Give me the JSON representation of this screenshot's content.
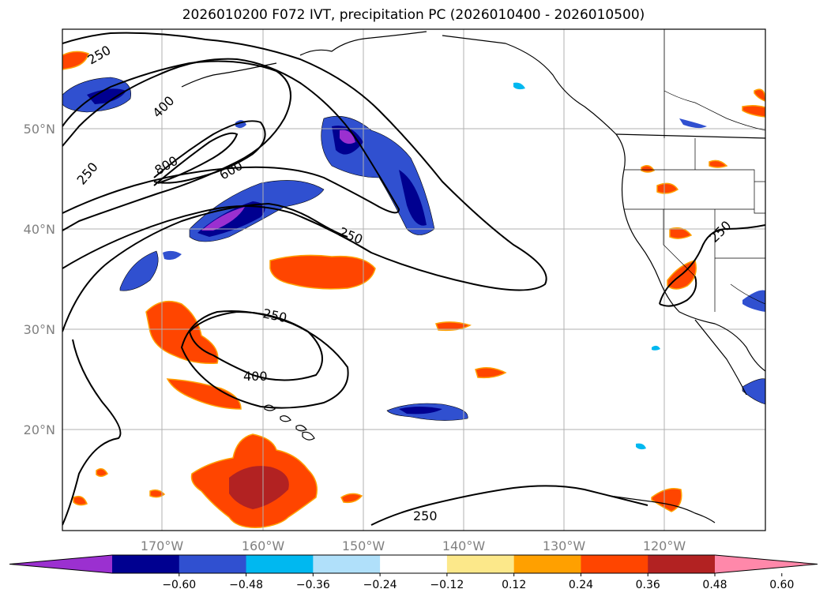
{
  "title": "2026010200 F072 IVT, precipitation PC (2026010400 - 2026010500)",
  "map": {
    "lat_labels": [
      "50°N",
      "40°N",
      "30°N",
      "20°N"
    ],
    "lon_labels": [
      "170°W",
      "160°W",
      "150°W",
      "140°W",
      "130°W",
      "120°W"
    ],
    "contour_labels": [
      "250",
      "400",
      "800",
      "600",
      "250",
      "250",
      "250",
      "400",
      "250",
      "250"
    ]
  },
  "colorbar": {
    "ticks": [
      "−0.60",
      "−0.48",
      "−0.36",
      "−0.24",
      "−0.12",
      "0.12",
      "0.24",
      "0.36",
      "0.48",
      "0.60"
    ],
    "colors": [
      "#9b30d0",
      "#000090",
      "#3050d0",
      "#00b8f0",
      "#b0e0fa",
      "#ffffff",
      "#fce88a",
      "#ffa000",
      "#ff4500",
      "#b22222",
      "#ff88aa"
    ]
  }
}
